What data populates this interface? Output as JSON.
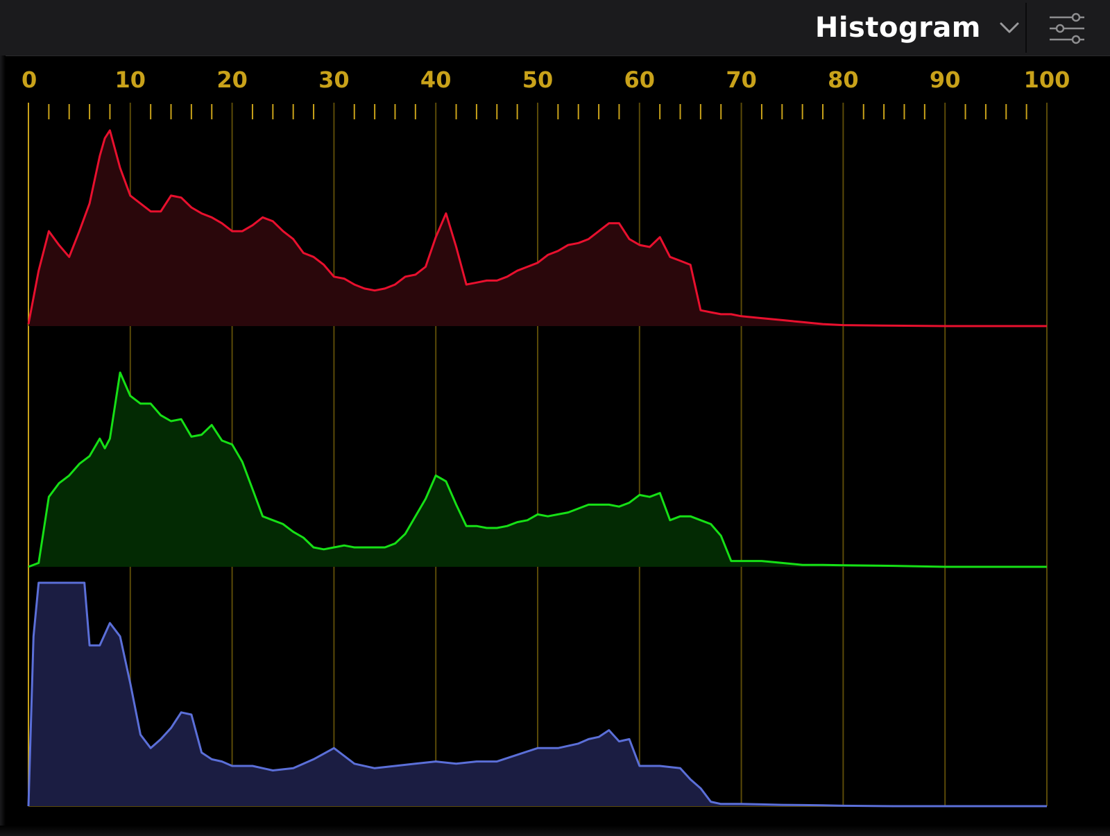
{
  "header": {
    "title": "Histogram",
    "dropdown_icon": "chevron-down-icon",
    "settings_icon": "sliders-icon"
  },
  "chart_data": {
    "type": "area",
    "title": "Histogram",
    "xlim": [
      0,
      100
    ],
    "ylim": [
      0,
      1
    ],
    "grid": true,
    "x_ticks": [
      0,
      10,
      20,
      30,
      40,
      50,
      60,
      70,
      80,
      90,
      100
    ],
    "x_tick_labels": [
      "0",
      "10",
      "20",
      "30",
      "40",
      "50",
      "60",
      "70",
      "80",
      "90",
      "100"
    ],
    "colors": {
      "axis": "#c9a21a",
      "grid": "#5a4a08",
      "red": "#e8102e",
      "green": "#16e016",
      "blue": "#5b6fd8"
    },
    "series": [
      {
        "color": "red",
        "x": [
          0,
          1,
          2,
          3,
          4,
          5,
          6,
          7,
          7.5,
          8,
          9,
          10,
          11,
          12,
          13,
          14,
          15,
          16,
          17,
          18,
          19,
          20,
          21,
          22,
          23,
          24,
          25,
          26,
          27,
          28,
          29,
          30,
          31,
          32,
          33,
          34,
          35,
          36,
          37,
          38,
          39,
          40,
          41,
          42,
          43,
          44,
          45,
          46,
          47,
          48,
          49,
          50,
          51,
          52,
          53,
          54,
          55,
          56,
          57,
          58,
          59,
          60,
          61,
          62,
          63,
          64,
          65,
          66,
          67,
          68,
          69,
          70,
          72,
          74,
          76,
          78,
          80,
          85,
          90,
          95,
          100
        ],
        "y": [
          0.01,
          0.28,
          0.48,
          0.41,
          0.35,
          0.48,
          0.62,
          0.86,
          0.95,
          0.99,
          0.8,
          0.66,
          0.62,
          0.58,
          0.58,
          0.66,
          0.65,
          0.6,
          0.57,
          0.55,
          0.52,
          0.48,
          0.48,
          0.51,
          0.55,
          0.53,
          0.48,
          0.44,
          0.37,
          0.35,
          0.31,
          0.25,
          0.24,
          0.21,
          0.19,
          0.18,
          0.19,
          0.21,
          0.25,
          0.26,
          0.3,
          0.45,
          0.57,
          0.4,
          0.21,
          0.22,
          0.23,
          0.23,
          0.25,
          0.28,
          0.3,
          0.32,
          0.36,
          0.38,
          0.41,
          0.42,
          0.44,
          0.48,
          0.52,
          0.52,
          0.44,
          0.41,
          0.4,
          0.45,
          0.35,
          0.33,
          0.31,
          0.08,
          0.07,
          0.06,
          0.06,
          0.05,
          0.04,
          0.03,
          0.02,
          0.01,
          0.005,
          0.002,
          0.0,
          0.0,
          0.0
        ]
      },
      {
        "color": "green",
        "x": [
          0,
          1,
          2,
          3,
          4,
          5,
          6,
          7,
          7.5,
          8,
          9,
          10,
          11,
          12,
          13,
          14,
          15,
          16,
          17,
          18,
          19,
          20,
          21,
          22,
          23,
          24,
          25,
          26,
          27,
          28,
          29,
          30,
          31,
          32,
          33,
          34,
          35,
          36,
          37,
          38,
          39,
          40,
          41,
          42,
          43,
          44,
          45,
          46,
          47,
          48,
          49,
          50,
          51,
          52,
          53,
          54,
          55,
          56,
          57,
          58,
          59,
          60,
          61,
          62,
          63,
          64,
          65,
          66,
          67,
          68,
          69,
          70,
          72,
          74,
          76,
          78,
          80,
          85,
          90,
          95,
          100
        ],
        "y": [
          0.0,
          0.02,
          0.36,
          0.43,
          0.47,
          0.53,
          0.57,
          0.66,
          0.61,
          0.66,
          1.0,
          0.88,
          0.84,
          0.84,
          0.78,
          0.75,
          0.76,
          0.67,
          0.68,
          0.73,
          0.65,
          0.63,
          0.54,
          0.4,
          0.26,
          0.24,
          0.22,
          0.18,
          0.15,
          0.1,
          0.09,
          0.1,
          0.11,
          0.1,
          0.1,
          0.1,
          0.1,
          0.12,
          0.17,
          0.26,
          0.35,
          0.47,
          0.44,
          0.32,
          0.21,
          0.21,
          0.2,
          0.2,
          0.21,
          0.23,
          0.24,
          0.27,
          0.26,
          0.27,
          0.28,
          0.3,
          0.32,
          0.32,
          0.32,
          0.31,
          0.33,
          0.37,
          0.36,
          0.38,
          0.24,
          0.26,
          0.26,
          0.24,
          0.22,
          0.16,
          0.03,
          0.03,
          0.03,
          0.02,
          0.01,
          0.01,
          0.008,
          0.005,
          0.0,
          0.0,
          0.0
        ]
      },
      {
        "color": "blue",
        "x": [
          0,
          0.5,
          1,
          2,
          3,
          4,
          5,
          5.5,
          6,
          7,
          8,
          9,
          10,
          11,
          12,
          13,
          14,
          15,
          16,
          17,
          18,
          19,
          20,
          22,
          24,
          26,
          28,
          30,
          32,
          34,
          36,
          38,
          40,
          42,
          44,
          46,
          48,
          50,
          52,
          54,
          55,
          56,
          57,
          58,
          59,
          60,
          62,
          64,
          65,
          66,
          67,
          68,
          70,
          72,
          74,
          76,
          78,
          80,
          85,
          90,
          95,
          100
        ],
        "y": [
          0.0,
          0.76,
          1.0,
          1.0,
          1.0,
          1.0,
          1.0,
          1.0,
          0.72,
          0.72,
          0.82,
          0.76,
          0.55,
          0.32,
          0.26,
          0.3,
          0.35,
          0.42,
          0.41,
          0.24,
          0.21,
          0.2,
          0.18,
          0.18,
          0.16,
          0.17,
          0.21,
          0.26,
          0.19,
          0.17,
          0.18,
          0.19,
          0.2,
          0.19,
          0.2,
          0.2,
          0.23,
          0.26,
          0.26,
          0.28,
          0.3,
          0.31,
          0.34,
          0.29,
          0.3,
          0.18,
          0.18,
          0.17,
          0.12,
          0.08,
          0.02,
          0.01,
          0.01,
          0.008,
          0.006,
          0.005,
          0.004,
          0.002,
          0.0,
          0.0,
          0.0,
          0.0
        ]
      }
    ]
  }
}
